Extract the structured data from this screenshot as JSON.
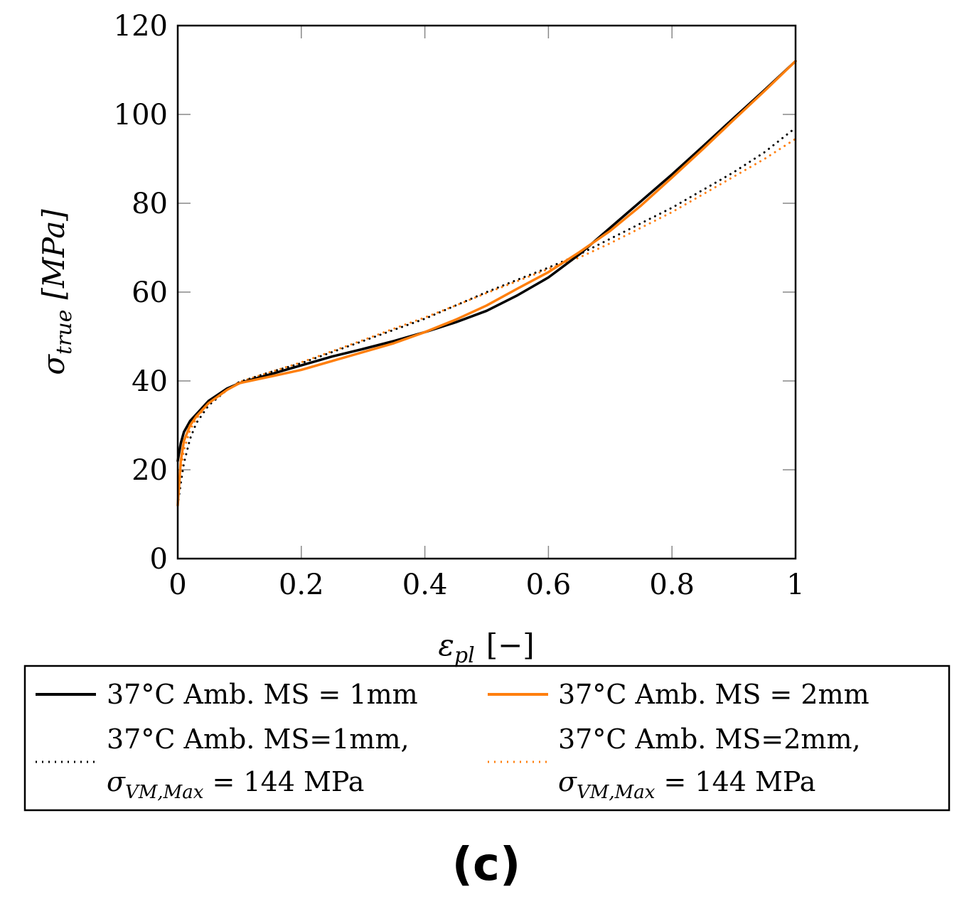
{
  "chart_data": {
    "type": "line",
    "xlabel": "ε_pl [−]",
    "xlabel_main": "ε",
    "xlabel_sub": "pl",
    "xlabel_unit": "[−]",
    "ylabel": "σ_true [MPa]",
    "ylabel_main": "σ",
    "ylabel_sub": "true",
    "ylabel_unit": "[MPa]",
    "xlim": [
      0,
      1
    ],
    "ylim": [
      0,
      120
    ],
    "xticks": [
      0,
      0.2,
      0.4,
      0.6,
      0.8,
      1
    ],
    "xtick_labels": [
      "0",
      "0.2",
      "0.4",
      "0.6",
      "0.8",
      "1"
    ],
    "yticks": [
      0,
      20,
      40,
      60,
      80,
      100,
      120
    ],
    "ytick_labels": [
      "0",
      "20",
      "40",
      "60",
      "80",
      "100",
      "120"
    ],
    "legend_position": "below",
    "panel_label": "(c)",
    "series": [
      {
        "name": "37°C Amb. MS = 1mm",
        "legend_line1": "37°C Amb. MS = 1mm",
        "color": "#000000",
        "style": "solid",
        "x": [
          0,
          0.005,
          0.01,
          0.02,
          0.03,
          0.05,
          0.08,
          0.1,
          0.15,
          0.2,
          0.25,
          0.3,
          0.35,
          0.4,
          0.45,
          0.5,
          0.55,
          0.6,
          0.65,
          0.7,
          0.75,
          0.8,
          0.85,
          0.9,
          0.95,
          1.0
        ],
        "y": [
          22,
          26,
          28.5,
          31,
          32.5,
          35.5,
          38.3,
          39.5,
          41.5,
          43.5,
          45.5,
          47.2,
          49,
          51,
          53.2,
          55.8,
          59.3,
          63.3,
          68.5,
          74.5,
          80.5,
          86.5,
          92.8,
          99.2,
          105.5,
          112
        ]
      },
      {
        "name": "37°C Amb. MS = 2mm",
        "legend_line1": "37°C Amb. MS = 2mm",
        "color": "#ff7f0e",
        "style": "solid",
        "x": [
          0,
          0.005,
          0.01,
          0.02,
          0.03,
          0.05,
          0.08,
          0.1,
          0.15,
          0.2,
          0.25,
          0.3,
          0.35,
          0.4,
          0.45,
          0.5,
          0.55,
          0.6,
          0.65,
          0.7,
          0.75,
          0.8,
          0.85,
          0.9,
          0.95,
          1.0
        ],
        "y": [
          12,
          22,
          26.5,
          30,
          32,
          35,
          38,
          39.5,
          41,
          42.5,
          44.5,
          46.5,
          48.5,
          51,
          53.8,
          57,
          60.8,
          64.5,
          69,
          73.8,
          79.5,
          85.8,
          92.2,
          98.8,
          105.3,
          112
        ]
      },
      {
        "name": "37°C Amb. MS=1mm, σ_VM,Max = 144 MPa",
        "legend_line1": "37°C Amb. MS=1mm,",
        "legend_sigma": "σ",
        "legend_sub": "VM,Max",
        "legend_rest": " = 144 MPa",
        "color": "#000000",
        "style": "dotted",
        "x": [
          0,
          0.005,
          0.01,
          0.02,
          0.03,
          0.05,
          0.08,
          0.1,
          0.15,
          0.2,
          0.25,
          0.3,
          0.35,
          0.4,
          0.45,
          0.5,
          0.55,
          0.6,
          0.65,
          0.7,
          0.75,
          0.8,
          0.85,
          0.9,
          0.95,
          1.0
        ],
        "y": [
          12,
          17,
          21.5,
          27,
          30.5,
          34.5,
          38,
          39.8,
          42,
          44,
          46.5,
          49,
          51.5,
          54,
          57,
          60,
          62.8,
          65.5,
          68.5,
          72,
          75.5,
          79,
          83,
          87,
          91.5,
          97
        ]
      },
      {
        "name": "37°C Amb. MS=2mm, σ_VM,Max = 144 MPa",
        "legend_line1": "37°C Amb. MS=2mm,",
        "legend_sigma": "σ",
        "legend_sub": "VM,Max",
        "legend_rest": " = 144 MPa",
        "color": "#ff7f0e",
        "style": "dotted",
        "x": [
          0,
          0.005,
          0.01,
          0.02,
          0.03,
          0.05,
          0.08,
          0.1,
          0.15,
          0.2,
          0.25,
          0.3,
          0.35,
          0.4,
          0.45,
          0.5,
          0.55,
          0.6,
          0.65,
          0.7,
          0.75,
          0.8,
          0.85,
          0.9,
          0.95,
          1.0
        ],
        "y": [
          12,
          20,
          24.5,
          29,
          31.5,
          35,
          38.2,
          39.8,
          42,
          44.2,
          46.7,
          49.2,
          51.8,
          54.3,
          57,
          59.8,
          62.5,
          65.2,
          67.8,
          71,
          74.5,
          78,
          82,
          86,
          90,
          94.5
        ]
      }
    ]
  }
}
